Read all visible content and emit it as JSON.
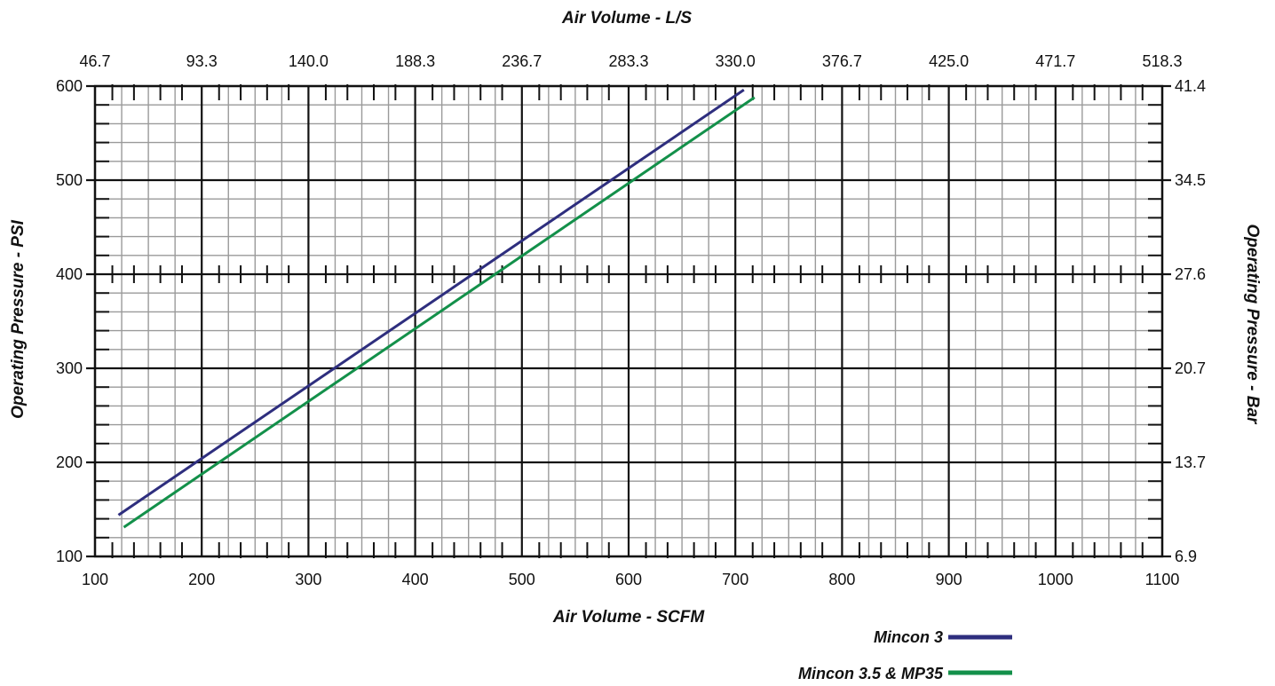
{
  "chart_data": {
    "type": "line",
    "x_bottom": {
      "label": "Air Volume - SCFM",
      "range": [
        100,
        1100
      ],
      "ticks": [
        100,
        200,
        300,
        400,
        500,
        600,
        700,
        800,
        900,
        1000,
        1100
      ],
      "tick_labels": [
        "100",
        "200",
        "300",
        "400",
        "500",
        "600",
        "700",
        "800",
        "900",
        "1000",
        "1100"
      ]
    },
    "x_top": {
      "label": "Air Volume - L/S",
      "tick_labels": [
        "46.7",
        "93.3",
        "140.0",
        "188.3",
        "236.7",
        "283.3",
        "330.0",
        "376.7",
        "425.0",
        "471.7",
        "518.3"
      ]
    },
    "y_left": {
      "label": "Operating Pressure - PSI",
      "range": [
        100,
        600
      ],
      "ticks": [
        100,
        200,
        300,
        400,
        500,
        600
      ],
      "tick_labels": [
        "100",
        "200",
        "300",
        "400",
        "500",
        "600"
      ]
    },
    "y_right": {
      "label": "Operating Pressure - Bar",
      "tick_labels": [
        "6.9",
        "13.7",
        "20.7",
        "27.6",
        "34.5",
        "41.4"
      ]
    },
    "grid": true,
    "legend_position": "bottom-right",
    "series": [
      {
        "name": "Mincon 3",
        "color": "#2e2e7e",
        "x": [
          122,
          708
        ],
        "y": [
          144,
          596
        ]
      },
      {
        "name": "Mincon 3.5 & MP35",
        "color": "#13904a",
        "x": [
          127,
          718
        ],
        "y": [
          131,
          588
        ]
      }
    ]
  }
}
